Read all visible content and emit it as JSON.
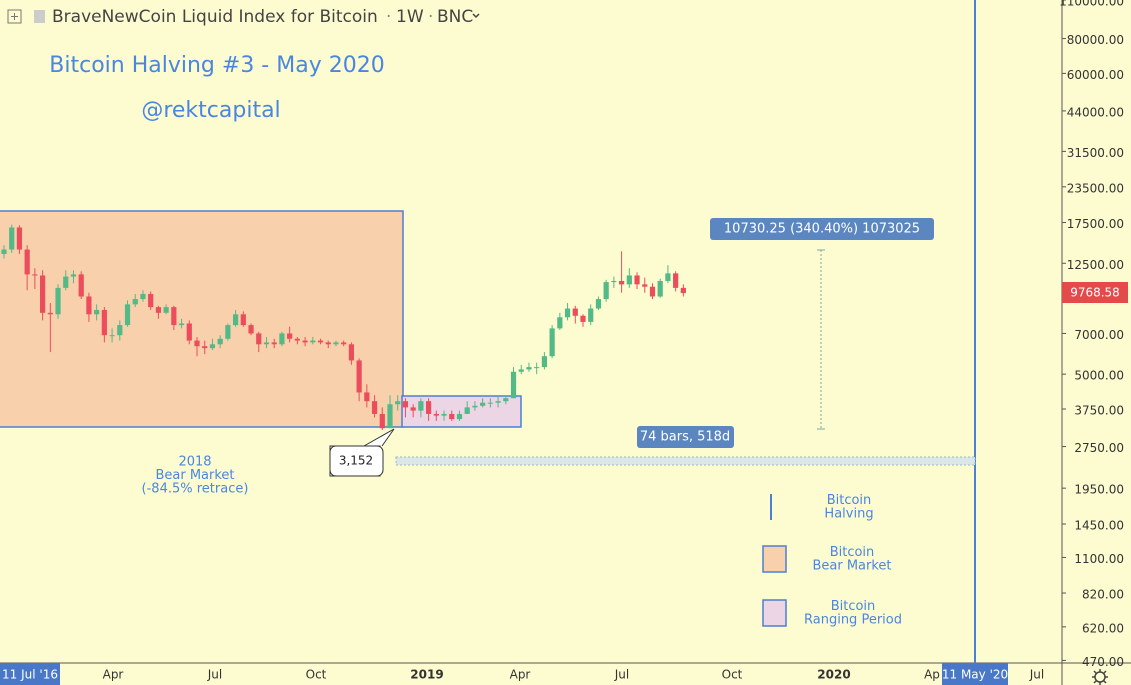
{
  "chart_data": {
    "type": "candlestick",
    "header": {
      "symbol": "BraveNewCoin Liquid Index for Bitcoin",
      "interval": "1W",
      "exchange": "BNC"
    },
    "title": "Bitcoin Halving #3 - May 2020",
    "subtitle": "@rektcapital",
    "yscale": "log",
    "ylim": [
      460,
      110000
    ],
    "yticks": [
      {
        "value": 110000,
        "label": "110000.00"
      },
      {
        "value": 80000,
        "label": "80000.00"
      },
      {
        "value": 60000,
        "label": "60000.00"
      },
      {
        "value": 44000,
        "label": "44000.00"
      },
      {
        "value": 31500,
        "label": "31500.00"
      },
      {
        "value": 23500,
        "label": "23500.00"
      },
      {
        "value": 17500,
        "label": "17500.00"
      },
      {
        "value": 12500,
        "label": "12500.00"
      },
      {
        "value": 7000,
        "label": "7000.00"
      },
      {
        "value": 5000,
        "label": "5000.00"
      },
      {
        "value": 3750,
        "label": "3750.00"
      },
      {
        "value": 2750,
        "label": "2750.00"
      },
      {
        "value": 1950,
        "label": "1950.00"
      },
      {
        "value": 1450,
        "label": "1450.00"
      },
      {
        "value": 1100,
        "label": "1100.00"
      },
      {
        "value": 820,
        "label": "820.00"
      },
      {
        "value": 620,
        "label": "620.00"
      },
      {
        "value": 470,
        "label": "470.00"
      }
    ],
    "xticks": [
      "11 Jul '16",
      "Apr",
      "Jul",
      "Oct",
      "2019",
      "Apr",
      "Jul",
      "Oct",
      "2020",
      "Ap",
      "11 May '20",
      "Jul"
    ],
    "up_color": "#53b987",
    "down_color": "#eb4d5c",
    "open": [
      13500,
      14000,
      16800,
      14000,
      11400,
      11300,
      8300,
      8200,
      10200,
      11200,
      11400,
      9500,
      8200,
      8500,
      6900,
      6900,
      7500,
      8900,
      9300,
      9700,
      8700,
      8300,
      8700,
      7500,
      7600,
      6600,
      6300,
      6200,
      6400,
      6700,
      7500,
      8200,
      7500,
      7000,
      6400,
      6500,
      6400,
      7000,
      6700,
      6600,
      6500,
      6600,
      6500,
      6400,
      6500,
      6400,
      5600,
      4300,
      4000,
      3600,
      3200,
      3900,
      4000,
      3800,
      3700,
      4000,
      3600,
      3550,
      3600,
      3450,
      3600,
      3800,
      3850,
      3950,
      3950,
      4000,
      4100,
      5100,
      5200,
      5300,
      5300,
      5800,
      7300,
      8000,
      8600,
      8100,
      7700,
      8600,
      9300,
      10700,
      10800,
      10500,
      11300,
      10500,
      10300,
      9500,
      10800,
      11500,
      10200
    ],
    "high": [
      14500,
      17200,
      17100,
      14500,
      12000,
      11800,
      9000,
      10500,
      11800,
      11800,
      11700,
      9800,
      8900,
      8700,
      7300,
      7800,
      9200,
      9700,
      10000,
      9900,
      8800,
      8900,
      8800,
      7900,
      7800,
      6800,
      6600,
      6700,
      6900,
      7600,
      8500,
      8400,
      7600,
      7100,
      6800,
      6700,
      7100,
      7400,
      6800,
      6800,
      6800,
      6700,
      6600,
      6600,
      6600,
      6500,
      5700,
      4600,
      4200,
      3800,
      4200,
      4200,
      4100,
      3900,
      4100,
      4100,
      3700,
      3700,
      3700,
      3700,
      4000,
      4000,
      4100,
      4100,
      4200,
      4200,
      5300,
      5400,
      5500,
      5500,
      6000,
      7500,
      8300,
      9000,
      8800,
      8200,
      8900,
      9500,
      10900,
      11200,
      13800,
      12000,
      11600,
      11100,
      10600,
      11000,
      12300,
      11700,
      10500
    ],
    "low": [
      13000,
      13600,
      13500,
      10000,
      10100,
      7800,
      6000,
      7900,
      10000,
      10600,
      9300,
      7700,
      7800,
      6500,
      6500,
      6600,
      7400,
      8700,
      9100,
      8500,
      7900,
      8200,
      7200,
      7300,
      6400,
      5800,
      5900,
      6100,
      6200,
      6600,
      7400,
      7400,
      6900,
      6000,
      6200,
      6200,
      6300,
      6500,
      6400,
      6300,
      6400,
      6400,
      6200,
      6300,
      6300,
      5400,
      4000,
      3800,
      3500,
      3152,
      3200,
      3700,
      3500,
      3500,
      3500,
      3400,
      3400,
      3400,
      3400,
      3400,
      3600,
      3700,
      3800,
      3800,
      3800,
      3900,
      4100,
      5000,
      5100,
      5000,
      5200,
      5700,
      7200,
      7800,
      7600,
      7400,
      7500,
      8500,
      9100,
      10200,
      9800,
      10200,
      10100,
      9800,
      9300,
      9400,
      10600,
      9900,
      9500
    ],
    "close": [
      14000,
      16800,
      14000,
      11400,
      11300,
      8300,
      8200,
      10200,
      11200,
      11400,
      9500,
      8200,
      8500,
      6900,
      6900,
      7500,
      8900,
      9300,
      9700,
      8700,
      8300,
      8700,
      7500,
      7600,
      6600,
      6300,
      6200,
      6400,
      6700,
      7500,
      8200,
      7500,
      7000,
      6400,
      6500,
      6400,
      7000,
      6700,
      6600,
      6500,
      6600,
      6500,
      6400,
      6500,
      6400,
      5600,
      4300,
      4000,
      3600,
      3200,
      3900,
      4000,
      3800,
      3700,
      4000,
      3600,
      3550,
      3600,
      3450,
      3600,
      3800,
      3850,
      3950,
      3950,
      4000,
      4100,
      5100,
      5200,
      5300,
      5300,
      5800,
      7300,
      8000,
      8600,
      8100,
      7700,
      8600,
      9300,
      10700,
      10800,
      10500,
      11300,
      10500,
      10300,
      9500,
      10800,
      11500,
      10200,
      9768.58
    ],
    "annotations": {
      "measure": "10730.25 (340.40%) 1073025",
      "range": "74 bars, 518d",
      "bear_label": [
        "2018",
        "Bear Market",
        "(-84.5% retrace)"
      ]
    },
    "legend": [
      [
        "Bitcoin",
        "Halving"
      ],
      [
        "Bitcoin",
        "Bear Market"
      ],
      [
        "Bitcoin",
        "Ranging Period"
      ]
    ]
  }
}
